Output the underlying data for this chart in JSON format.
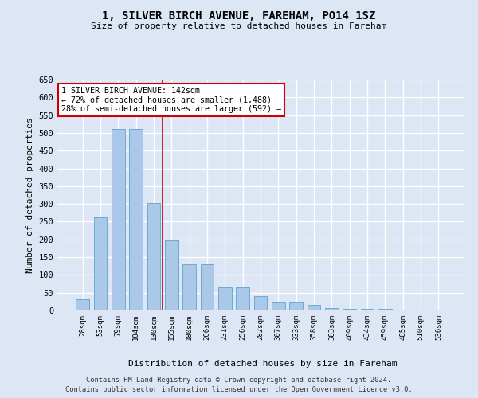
{
  "title": "1, SILVER BIRCH AVENUE, FAREHAM, PO14 1SZ",
  "subtitle": "Size of property relative to detached houses in Fareham",
  "xlabel": "Distribution of detached houses by size in Fareham",
  "ylabel": "Number of detached properties",
  "categories": [
    "28sqm",
    "53sqm",
    "79sqm",
    "104sqm",
    "130sqm",
    "155sqm",
    "180sqm",
    "206sqm",
    "231sqm",
    "256sqm",
    "282sqm",
    "307sqm",
    "333sqm",
    "358sqm",
    "383sqm",
    "409sqm",
    "434sqm",
    "459sqm",
    "485sqm",
    "510sqm",
    "536sqm"
  ],
  "values": [
    32,
    263,
    512,
    511,
    302,
    197,
    130,
    130,
    65,
    65,
    40,
    22,
    22,
    15,
    7,
    4,
    4,
    4,
    1,
    1,
    3
  ],
  "bar_color": "#aac8e8",
  "bar_edge_color": "#6aaad4",
  "background_color": "#dce6f5",
  "grid_color": "#ffffff",
  "property_line_x": 4.5,
  "annotation_line1": "1 SILVER BIRCH AVENUE: 142sqm",
  "annotation_line2": "← 72% of detached houses are smaller (1,488)",
  "annotation_line3": "28% of semi-detached houses are larger (592) →",
  "annotation_box_color": "#ffffff",
  "annotation_box_edge_color": "#cc0000",
  "ylim": [
    0,
    650
  ],
  "yticks": [
    0,
    50,
    100,
    150,
    200,
    250,
    300,
    350,
    400,
    450,
    500,
    550,
    600,
    650
  ],
  "footnote_line1": "Contains HM Land Registry data © Crown copyright and database right 2024.",
  "footnote_line2": "Contains public sector information licensed under the Open Government Licence v3.0.",
  "property_line_color": "#cc0000",
  "bar_width": 0.75
}
